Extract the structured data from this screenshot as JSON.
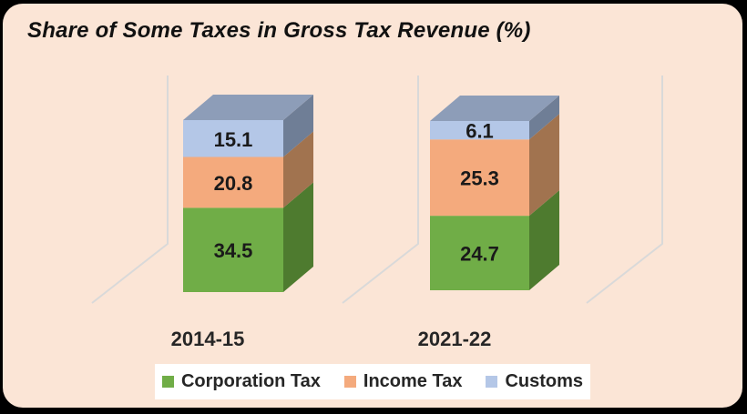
{
  "colors": {
    "canvas_border": "#000000",
    "panel_background": "#fbe5d6",
    "legend_background": "#ffffff",
    "gridline": "#d9d9d9",
    "value_label_text": "#1a1a1a",
    "category_label_text": "#262626"
  },
  "chart_data": {
    "type": "bar",
    "variant": "3d-stacked-column",
    "title": "Share of Some Taxes in Gross Tax Revenue (%)",
    "units": "%",
    "categories": [
      "2014-15",
      "2021-22"
    ],
    "series": [
      {
        "name": "Corporation Tax",
        "color": "#70ad47",
        "side_color": "#4e7b2f",
        "values": [
          34.5,
          24.7
        ]
      },
      {
        "name": "Income Tax",
        "color": "#f4aa7d",
        "side_color": "#a1734f",
        "values": [
          20.8,
          25.3
        ]
      },
      {
        "name": "Customs",
        "color": "#b4c7e7",
        "side_color": "#6f7e96",
        "values": [
          15.1,
          6.1
        ]
      }
    ],
    "top_face_color": "#8d9db8",
    "value_labels_shown": true,
    "legend_position": "bottom",
    "xlabel": "",
    "ylabel": "",
    "grid": "3d-category-backwall-lines"
  }
}
